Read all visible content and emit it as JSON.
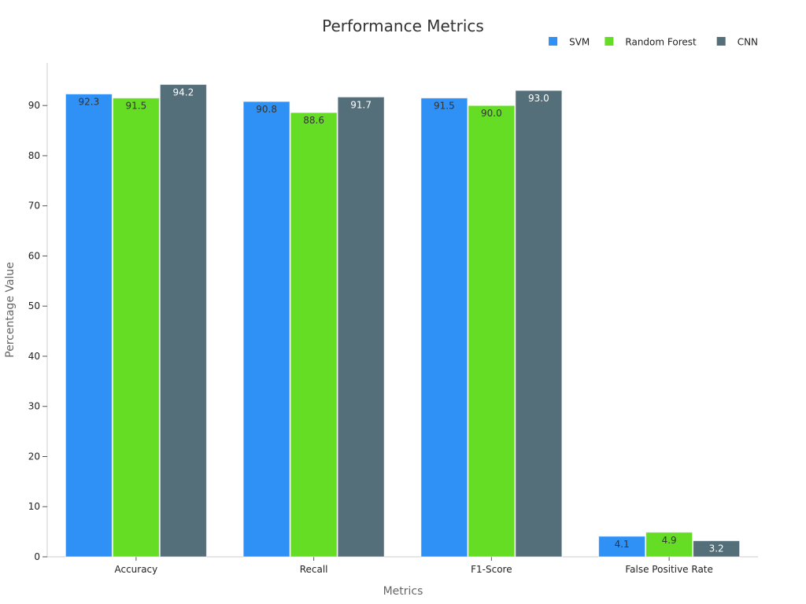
{
  "chart_data": {
    "type": "bar",
    "title": "Performance Metrics",
    "xlabel": "Metrics",
    "ylabel": "Percentage Value",
    "categories": [
      "Accuracy",
      "Recall",
      "F1-Score",
      "False Positive Rate"
    ],
    "series": [
      {
        "name": "SVM",
        "color": "#2f90f5",
        "label_color": "#333333",
        "values": [
          92.3,
          90.8,
          91.5,
          4.1
        ]
      },
      {
        "name": "Random Forest",
        "color": "#66dd25",
        "label_color": "#333333",
        "values": [
          91.5,
          88.6,
          90.0,
          4.9
        ]
      },
      {
        "name": "CNN",
        "color": "#546e7a",
        "label_color": "#ffffff",
        "values": [
          94.2,
          91.7,
          93.0,
          3.2
        ]
      }
    ],
    "ylim": [
      0,
      98.5
    ],
    "yticks": [
      0,
      10,
      20,
      30,
      40,
      50,
      60,
      70,
      80,
      90
    ],
    "grid": false,
    "legend_position": "top-right",
    "data_label_format": "0.0"
  }
}
